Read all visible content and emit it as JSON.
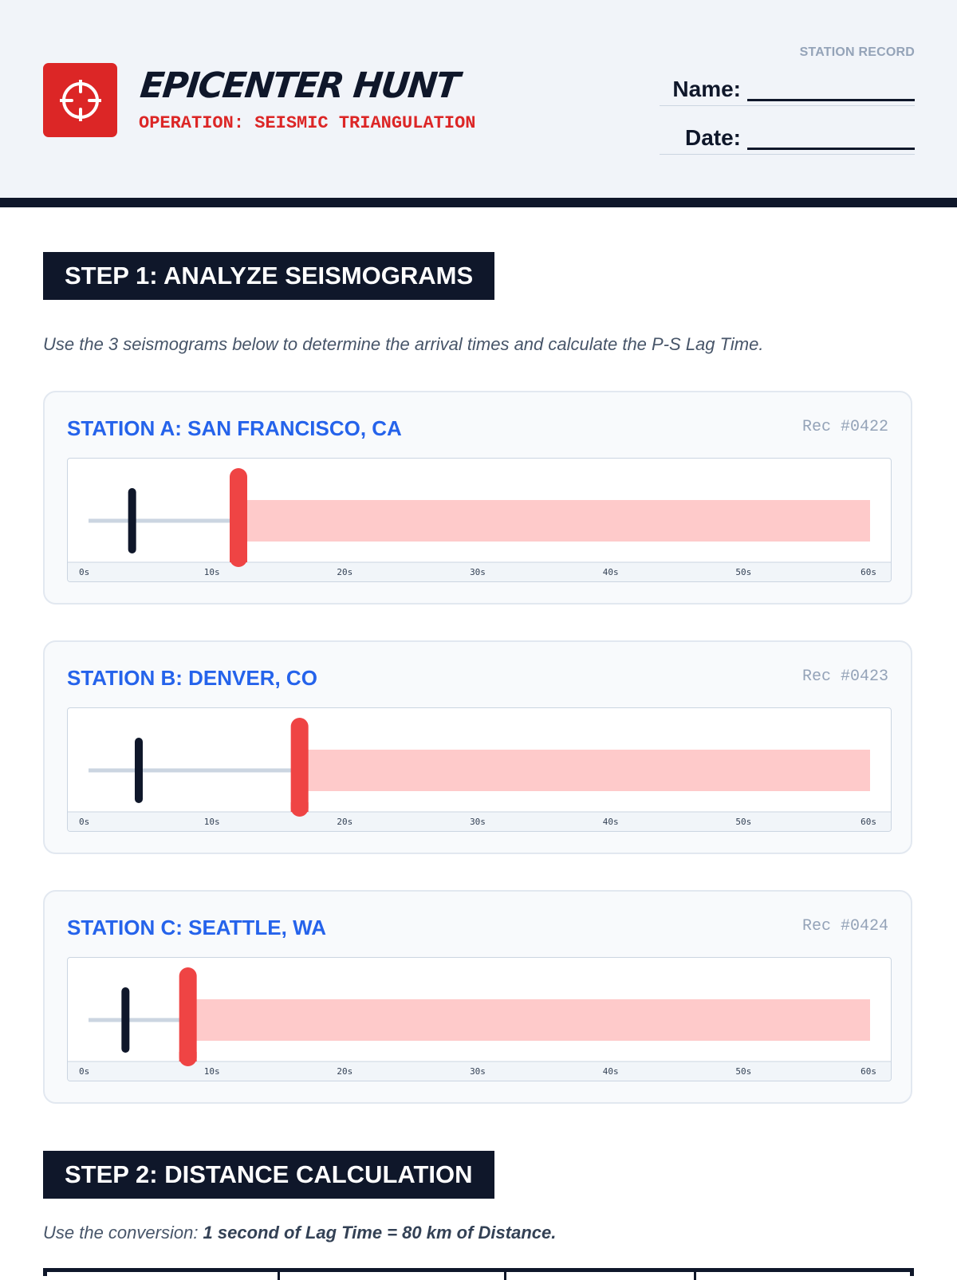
{
  "header": {
    "title": "EPICENTER HUNT",
    "subtitle": "OPERATION: SEISMIC TRIANGULATION",
    "record_label": "STATION RECORD",
    "name_label": "Name:",
    "date_label": "Date:",
    "logo_icon": "crosshair-icon",
    "accent_color": "#dc2626"
  },
  "step1": {
    "heading": "STEP 1: ANALYZE SEISMOGRAMS",
    "instruction": "Use the 3 seismograms below to determine the arrival times and calculate the P-S Lag Time."
  },
  "stations": [
    {
      "title": "STATION A: SAN FRANCISCO, CA",
      "rec": "Rec #0422",
      "p_arrival_s": 4.0,
      "s_arrival_s": 12.0
    },
    {
      "title": "STATION B: DENVER, CO",
      "rec": "Rec #0423",
      "p_arrival_s": 4.5,
      "s_arrival_s": 16.6
    },
    {
      "title": "STATION C: SEATTLE, WA",
      "rec": "Rec #0424",
      "p_arrival_s": 3.5,
      "s_arrival_s": 8.2
    }
  ],
  "seismogram_axis": {
    "ticks": [
      "0s",
      "10s",
      "20s",
      "30s",
      "40s",
      "50s",
      "60s"
    ],
    "min": 0,
    "max": 60,
    "p_wave_color": "#0f172a",
    "s_wave_color": "#ef4444",
    "s_wave_band_color": "#fecaca"
  },
  "step2": {
    "heading": "STEP 2: DISTANCE CALCULATION",
    "instruction_prefix": "Use the conversion: ",
    "instruction_bold": "1 second of Lag Time = 80 km of Distance."
  }
}
